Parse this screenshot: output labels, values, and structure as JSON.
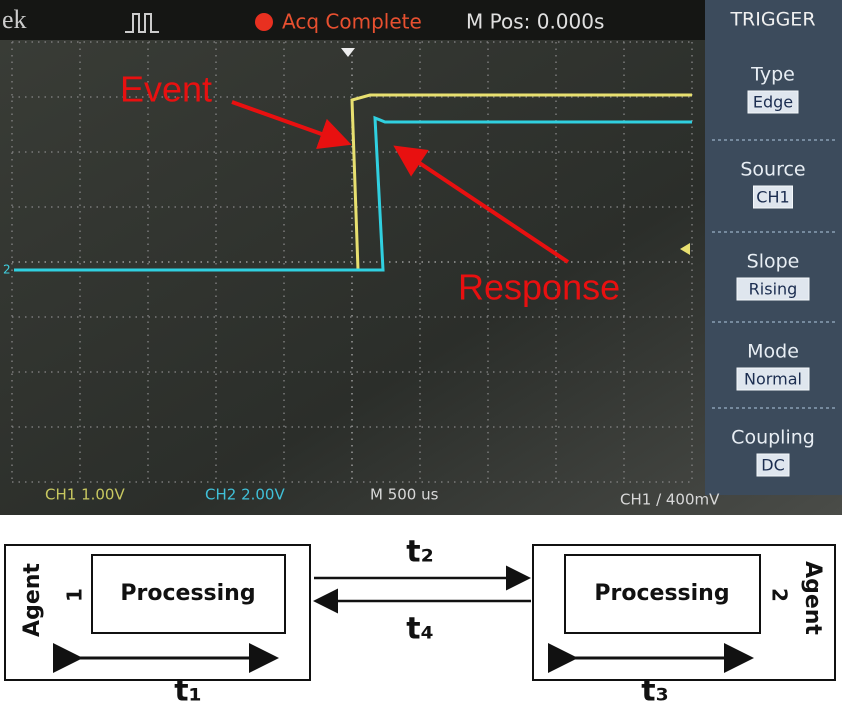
{
  "oscilloscope": {
    "brand": "ek",
    "status": "Acq Complete",
    "position": "M Pos: 0.000s",
    "channel_marker": "2",
    "menu": {
      "title": "TRIGGER",
      "items": [
        {
          "label": "Type",
          "value": "Edge"
        },
        {
          "label": "Source",
          "value": "CH1"
        },
        {
          "label": "Slope",
          "value": "Rising"
        },
        {
          "label": "Mode",
          "value": "Normal"
        },
        {
          "label": "Coupling",
          "value": "DC"
        }
      ]
    },
    "ch1_scale": "CH1 1.00V",
    "ch2_scale": "CH2 2.00V",
    "timebase": "M 500 us",
    "trigger_level": "CH1 / 400mV",
    "annotations": {
      "event": "Event",
      "response": "Response"
    }
  },
  "diagram": {
    "agents": [
      {
        "label": "Agent",
        "number": "1",
        "process": "Processing",
        "time": "t₁"
      },
      {
        "label": "Agent",
        "number": "2",
        "process": "Processing",
        "time": "t₃"
      }
    ],
    "messages": [
      {
        "label": "t₂"
      },
      {
        "label": "t₄"
      }
    ]
  }
}
